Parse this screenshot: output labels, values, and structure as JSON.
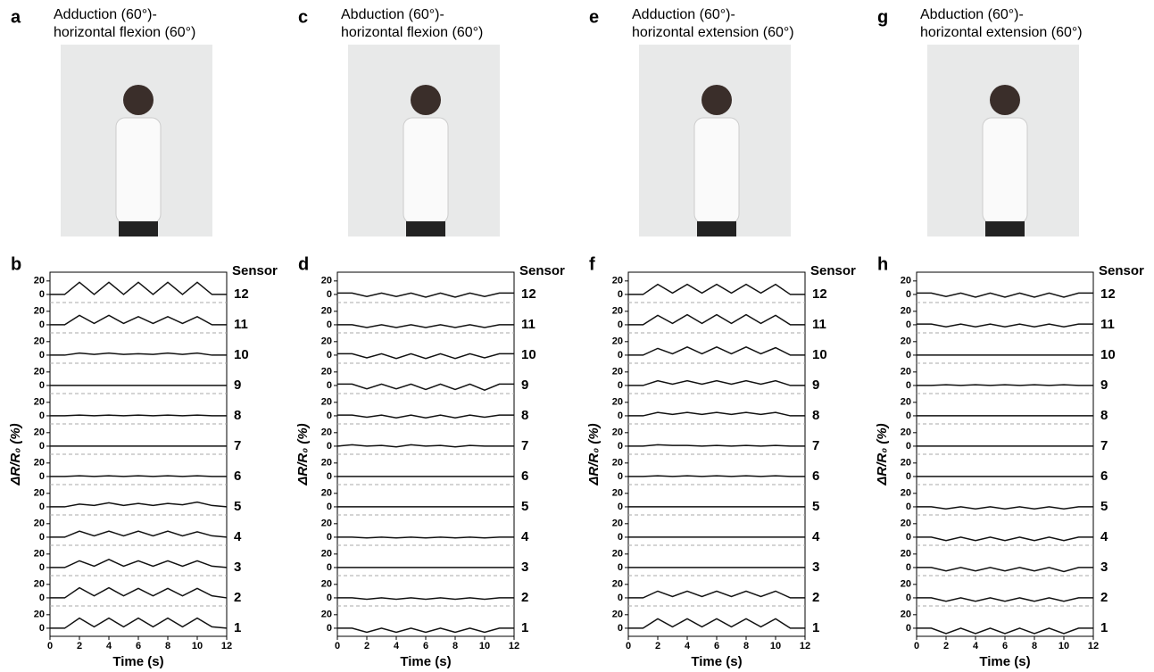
{
  "panels": [
    {
      "letter": "a",
      "title": [
        "Adduction (60°)-",
        "horizontal flexion (60°)"
      ]
    },
    {
      "letter": "c",
      "title": [
        "Abduction (60°)-",
        "horizontal flexion (60°)"
      ]
    },
    {
      "letter": "e",
      "title": [
        "Adduction (60°)-",
        "horizontal extension (60°)"
      ]
    },
    {
      "letter": "g",
      "title": [
        "Abduction (60°)-",
        "horizontal extension (60°)"
      ]
    }
  ],
  "chart_data": [
    {
      "type": "line",
      "label": "b",
      "xlabel": "Time (s)",
      "ylabel": "ΔR/R₀ (%)",
      "legend_title": "Sensor",
      "color": "#111111",
      "x": [
        0,
        1,
        2,
        3,
        4,
        5,
        6,
        7,
        8,
        9,
        10,
        11,
        12
      ],
      "xlim": [
        0,
        12
      ],
      "xticks": [
        0,
        2,
        4,
        6,
        8,
        10,
        12
      ],
      "ylim": [
        -12,
        33
      ],
      "yticks": [
        0,
        20
      ],
      "series": [
        {
          "name": "12",
          "values": [
            0,
            0,
            18,
            0,
            18,
            0,
            18,
            0,
            18,
            0,
            18,
            0,
            0
          ]
        },
        {
          "name": "11",
          "values": [
            0,
            0,
            14,
            2,
            14,
            2,
            12,
            2,
            12,
            2,
            12,
            0,
            0
          ]
        },
        {
          "name": "10",
          "values": [
            0,
            0,
            3,
            1,
            3,
            1,
            2,
            1,
            3,
            1,
            3,
            0,
            0
          ]
        },
        {
          "name": "9",
          "values": [
            0,
            0,
            0,
            0,
            0,
            0,
            0,
            0,
            0,
            0,
            0,
            0,
            0
          ]
        },
        {
          "name": "8",
          "values": [
            0,
            0,
            1,
            0,
            1,
            0,
            1,
            0,
            1,
            0,
            1,
            0,
            0
          ]
        },
        {
          "name": "7",
          "values": [
            0,
            0,
            0,
            0,
            0,
            0,
            0,
            0,
            0,
            0,
            0,
            0,
            0
          ]
        },
        {
          "name": "6",
          "values": [
            0,
            0,
            1,
            0,
            1,
            0,
            1,
            0,
            1,
            0,
            1,
            0,
            0
          ]
        },
        {
          "name": "5",
          "values": [
            0,
            0,
            4,
            2,
            6,
            2,
            5,
            2,
            5,
            3,
            7,
            2,
            0
          ]
        },
        {
          "name": "4",
          "values": [
            0,
            0,
            9,
            2,
            9,
            2,
            9,
            2,
            9,
            2,
            8,
            2,
            0
          ]
        },
        {
          "name": "3",
          "values": [
            0,
            0,
            10,
            2,
            12,
            2,
            10,
            2,
            10,
            2,
            10,
            2,
            0
          ]
        },
        {
          "name": "2",
          "values": [
            0,
            0,
            15,
            3,
            15,
            3,
            14,
            3,
            14,
            3,
            14,
            3,
            0
          ]
        },
        {
          "name": "1",
          "values": [
            0,
            0,
            15,
            2,
            15,
            2,
            15,
            2,
            15,
            2,
            15,
            2,
            0
          ]
        }
      ]
    },
    {
      "type": "line",
      "label": "d",
      "xlabel": "Time (s)",
      "ylabel": "ΔR/R₀ (%)",
      "legend_title": "Sensor",
      "color": "#111111",
      "x": [
        0,
        1,
        2,
        3,
        4,
        5,
        6,
        7,
        8,
        9,
        10,
        11,
        12
      ],
      "xlim": [
        0,
        12
      ],
      "xticks": [
        0,
        2,
        4,
        6,
        8,
        10,
        12
      ],
      "ylim": [
        -12,
        33
      ],
      "yticks": [
        0,
        20
      ],
      "series": [
        {
          "name": "12",
          "values": [
            2,
            2,
            -3,
            2,
            -3,
            2,
            -4,
            2,
            -4,
            2,
            -3,
            2,
            2
          ]
        },
        {
          "name": "11",
          "values": [
            0,
            0,
            -4,
            0,
            -4,
            0,
            -4,
            0,
            -4,
            0,
            -4,
            0,
            0
          ]
        },
        {
          "name": "10",
          "values": [
            2,
            2,
            -4,
            2,
            -5,
            2,
            -5,
            2,
            -5,
            2,
            -4,
            2,
            2
          ]
        },
        {
          "name": "9",
          "values": [
            2,
            2,
            -5,
            2,
            -5,
            2,
            -6,
            2,
            -6,
            2,
            -7,
            2,
            2
          ]
        },
        {
          "name": "8",
          "values": [
            1,
            1,
            -2,
            1,
            -3,
            1,
            -3,
            1,
            -3,
            1,
            -2,
            1,
            1
          ]
        },
        {
          "name": "7",
          "values": [
            0,
            2,
            0,
            1,
            -1,
            2,
            0,
            1,
            -1,
            1,
            0,
            0,
            0
          ]
        },
        {
          "name": "6",
          "values": [
            0,
            0,
            0,
            0,
            0,
            0,
            0,
            0,
            0,
            0,
            0,
            0,
            0
          ]
        },
        {
          "name": "5",
          "values": [
            0,
            0,
            0,
            0,
            0,
            0,
            0,
            0,
            0,
            0,
            0,
            0,
            0
          ]
        },
        {
          "name": "4",
          "values": [
            0,
            0,
            -1,
            0,
            -1,
            0,
            -1,
            0,
            -1,
            0,
            -1,
            0,
            0
          ]
        },
        {
          "name": "3",
          "values": [
            0,
            0,
            0,
            0,
            0,
            0,
            0,
            0,
            0,
            0,
            0,
            0,
            0
          ]
        },
        {
          "name": "2",
          "values": [
            0,
            0,
            -2,
            0,
            -2,
            0,
            -2,
            0,
            -2,
            0,
            -2,
            0,
            0
          ]
        },
        {
          "name": "1",
          "values": [
            0,
            0,
            -6,
            0,
            -6,
            0,
            -6,
            0,
            -6,
            0,
            -6,
            0,
            0
          ]
        }
      ]
    },
    {
      "type": "line",
      "label": "f",
      "xlabel": "Time (s)",
      "ylabel": "ΔR/R₀ (%)",
      "legend_title": "Sensor",
      "color": "#111111",
      "x": [
        0,
        1,
        2,
        3,
        4,
        5,
        6,
        7,
        8,
        9,
        10,
        11,
        12
      ],
      "xlim": [
        0,
        12
      ],
      "xticks": [
        0,
        2,
        4,
        6,
        8,
        10,
        12
      ],
      "ylim": [
        -12,
        33
      ],
      "yticks": [
        0,
        20
      ],
      "series": [
        {
          "name": "12",
          "values": [
            0,
            0,
            15,
            2,
            15,
            2,
            15,
            2,
            15,
            2,
            15,
            0,
            0
          ]
        },
        {
          "name": "11",
          "values": [
            0,
            0,
            14,
            2,
            15,
            2,
            15,
            2,
            15,
            2,
            14,
            0,
            0
          ]
        },
        {
          "name": "10",
          "values": [
            0,
            0,
            10,
            2,
            12,
            2,
            12,
            2,
            12,
            2,
            11,
            0,
            0
          ]
        },
        {
          "name": "9",
          "values": [
            0,
            0,
            7,
            2,
            7,
            2,
            7,
            2,
            7,
            2,
            7,
            0,
            0
          ]
        },
        {
          "name": "8",
          "values": [
            0,
            0,
            5,
            2,
            5,
            2,
            5,
            2,
            5,
            2,
            5,
            0,
            0
          ]
        },
        {
          "name": "7",
          "values": [
            0,
            0,
            2,
            1,
            1,
            0,
            1,
            0,
            1,
            0,
            1,
            0,
            0
          ]
        },
        {
          "name": "6",
          "values": [
            0,
            0,
            1,
            0,
            1,
            0,
            1,
            0,
            1,
            0,
            1,
            0,
            0
          ]
        },
        {
          "name": "5",
          "values": [
            0,
            0,
            0,
            0,
            0,
            0,
            0,
            0,
            0,
            0,
            0,
            0,
            0
          ]
        },
        {
          "name": "4",
          "values": [
            0,
            0,
            0,
            0,
            0,
            0,
            0,
            0,
            0,
            0,
            0,
            0,
            0
          ]
        },
        {
          "name": "3",
          "values": [
            0,
            0,
            0,
            0,
            0,
            0,
            0,
            0,
            0,
            0,
            0,
            0,
            0
          ]
        },
        {
          "name": "2",
          "values": [
            0,
            0,
            10,
            2,
            10,
            2,
            10,
            2,
            10,
            2,
            10,
            0,
            0
          ]
        },
        {
          "name": "1",
          "values": [
            0,
            0,
            14,
            2,
            14,
            2,
            14,
            2,
            14,
            2,
            14,
            0,
            0
          ]
        }
      ]
    },
    {
      "type": "line",
      "label": "h",
      "xlabel": "Time (s)",
      "ylabel": "ΔR/R₀ (%)",
      "legend_title": "Sensor",
      "color": "#111111",
      "x": [
        0,
        1,
        2,
        3,
        4,
        5,
        6,
        7,
        8,
        9,
        10,
        11,
        12
      ],
      "xlim": [
        0,
        12
      ],
      "xticks": [
        0,
        2,
        4,
        6,
        8,
        10,
        12
      ],
      "ylim": [
        -12,
        33
      ],
      "yticks": [
        0,
        20
      ],
      "series": [
        {
          "name": "12",
          "values": [
            2,
            2,
            -3,
            2,
            -4,
            2,
            -4,
            2,
            -4,
            2,
            -4,
            2,
            2
          ]
        },
        {
          "name": "11",
          "values": [
            1,
            1,
            -3,
            1,
            -3,
            1,
            -3,
            1,
            -3,
            1,
            -3,
            1,
            1
          ]
        },
        {
          "name": "10",
          "values": [
            0,
            0,
            0,
            0,
            0,
            0,
            0,
            0,
            0,
            0,
            0,
            0,
            0
          ]
        },
        {
          "name": "9",
          "values": [
            0,
            0,
            1,
            0,
            1,
            0,
            1,
            0,
            1,
            0,
            1,
            0,
            0
          ]
        },
        {
          "name": "8",
          "values": [
            0,
            0,
            0,
            0,
            0,
            0,
            0,
            0,
            0,
            0,
            0,
            0,
            0
          ]
        },
        {
          "name": "7",
          "values": [
            0,
            0,
            0,
            0,
            0,
            0,
            0,
            0,
            0,
            0,
            0,
            0,
            0
          ]
        },
        {
          "name": "6",
          "values": [
            0,
            0,
            0,
            0,
            0,
            0,
            0,
            0,
            0,
            0,
            0,
            0,
            0
          ]
        },
        {
          "name": "5",
          "values": [
            0,
            0,
            -3,
            0,
            -3,
            0,
            -3,
            0,
            -3,
            0,
            -3,
            0,
            0
          ]
        },
        {
          "name": "4",
          "values": [
            0,
            0,
            -5,
            0,
            -5,
            0,
            -5,
            0,
            -5,
            0,
            -5,
            0,
            0
          ]
        },
        {
          "name": "3",
          "values": [
            0,
            0,
            -5,
            0,
            -5,
            0,
            -5,
            0,
            -5,
            0,
            -6,
            0,
            0
          ]
        },
        {
          "name": "2",
          "values": [
            0,
            0,
            -5,
            0,
            -5,
            0,
            -5,
            0,
            -5,
            0,
            -5,
            0,
            0
          ]
        },
        {
          "name": "1",
          "values": [
            0,
            0,
            -8,
            0,
            -8,
            0,
            -8,
            0,
            -8,
            0,
            -8,
            0,
            0
          ]
        }
      ]
    }
  ]
}
